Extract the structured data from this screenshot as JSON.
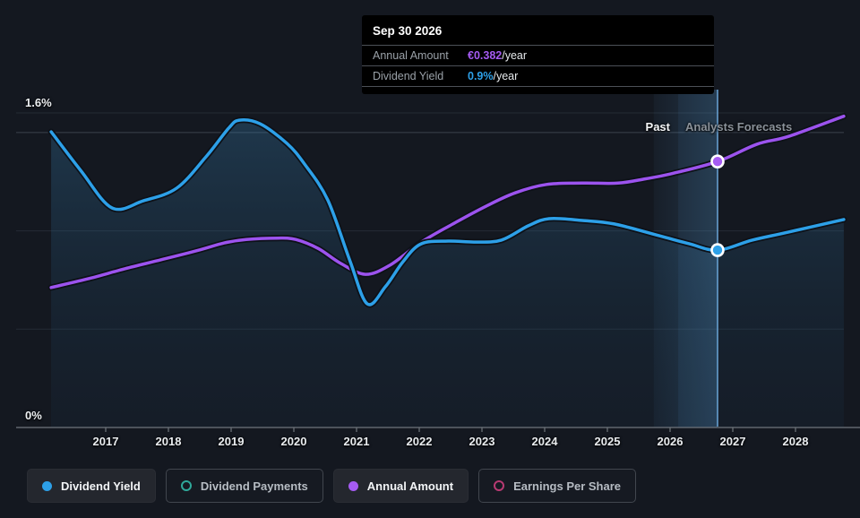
{
  "colors": {
    "background": "#141820",
    "blue": "#2da0e8",
    "purple": "#9c53ee",
    "teal": "#2fa89a",
    "pink": "#b73a72",
    "grid": "#242b34",
    "grid_bright": "#3a414b",
    "axis": "#6f757c",
    "hover_line": "#6aa6d8",
    "tooltip_bg": "#000000"
  },
  "tooltip": {
    "date": "Sep 30 2026",
    "rows": [
      {
        "label": "Annual Amount",
        "value": "€0.382",
        "suffix": "/year",
        "color": "#a55bf2"
      },
      {
        "label": "Dividend Yield",
        "value": "0.9%",
        "suffix": "/year",
        "color": "#2da0e8"
      }
    ]
  },
  "annotations": {
    "past_label": "Past",
    "forecast_label": "Analysts Forecasts"
  },
  "axes": {
    "y_top_label": "1.6%",
    "y_bottom_label": "0%",
    "years": [
      "2017",
      "2018",
      "2019",
      "2020",
      "2021",
      "2022",
      "2023",
      "2024",
      "2025",
      "2026",
      "2027",
      "2028"
    ]
  },
  "legend": [
    {
      "label": "Dividend Yield",
      "marker": "filled",
      "color": "#2da0e8",
      "active": true
    },
    {
      "label": "Dividend Payments",
      "marker": "open",
      "color": "#2fa89a",
      "active": false
    },
    {
      "label": "Annual Amount",
      "marker": "filled",
      "color": "#a55bf2",
      "active": true
    },
    {
      "label": "Earnings Per Share",
      "marker": "open",
      "color": "#b73a72",
      "active": false
    }
  ],
  "chart_data": {
    "type": "line",
    "title": "Dividend history and forecast",
    "x_range": [
      2016.13,
      2028.77
    ],
    "x_ticks": [
      2017,
      2018,
      2019,
      2020,
      2021,
      2022,
      2023,
      2024,
      2025,
      2026,
      2027,
      2028
    ],
    "y_axis_percent": {
      "range": [
        0,
        1.6
      ],
      "gridlines": [
        0,
        0.5,
        1.0,
        1.5,
        1.6
      ],
      "labeled": {
        "1.6": "1.6%",
        "0": "0%"
      }
    },
    "past_forecast_boundary_x": 2026.13,
    "highlight_band": {
      "x_start": 2025.74,
      "x_end": 2026.757
    },
    "hover_x": 2026.757,
    "series": [
      {
        "name": "Dividend Yield",
        "unit": "%",
        "color": "#2da0e8",
        "area": true,
        "points": [
          [
            2016.13,
            1.504
          ],
          [
            2016.6,
            1.308
          ],
          [
            2017.1,
            1.117
          ],
          [
            2017.6,
            1.153
          ],
          [
            2018.13,
            1.217
          ],
          [
            2018.6,
            1.377
          ],
          [
            2018.96,
            1.522
          ],
          [
            2019.13,
            1.563
          ],
          [
            2019.46,
            1.545
          ],
          [
            2019.89,
            1.445
          ],
          [
            2020.17,
            1.34
          ],
          [
            2020.54,
            1.158
          ],
          [
            2020.89,
            0.852
          ],
          [
            2021.17,
            0.629
          ],
          [
            2021.46,
            0.716
          ],
          [
            2021.74,
            0.843
          ],
          [
            2022.03,
            0.934
          ],
          [
            2022.46,
            0.948
          ],
          [
            2022.89,
            0.943
          ],
          [
            2023.31,
            0.953
          ],
          [
            2023.74,
            1.026
          ],
          [
            2024.07,
            1.062
          ],
          [
            2024.6,
            1.053
          ],
          [
            2025.11,
            1.035
          ],
          [
            2025.83,
            0.975
          ],
          [
            2026.31,
            0.934
          ],
          [
            2026.757,
            0.902
          ],
          [
            2027.31,
            0.953
          ],
          [
            2027.89,
            0.994
          ],
          [
            2028.77,
            1.058
          ]
        ]
      },
      {
        "name": "Annual Amount",
        "unit": "€/year",
        "color": "#9c53ee",
        "area": false,
        "points": [
          [
            2016.13,
            0.201
          ],
          [
            2016.74,
            0.214
          ],
          [
            2017.31,
            0.228
          ],
          [
            2017.89,
            0.241
          ],
          [
            2018.46,
            0.254
          ],
          [
            2018.89,
            0.265
          ],
          [
            2019.24,
            0.27
          ],
          [
            2019.74,
            0.272
          ],
          [
            2020.03,
            0.27
          ],
          [
            2020.39,
            0.257
          ],
          [
            2020.74,
            0.236
          ],
          [
            2021.14,
            0.22
          ],
          [
            2021.53,
            0.233
          ],
          [
            2022.03,
            0.266
          ],
          [
            2022.53,
            0.292
          ],
          [
            2023.07,
            0.318
          ],
          [
            2023.53,
            0.337
          ],
          [
            2024.03,
            0.349
          ],
          [
            2024.6,
            0.351
          ],
          [
            2025.17,
            0.351
          ],
          [
            2025.6,
            0.357
          ],
          [
            2026.0,
            0.364
          ],
          [
            2026.757,
            0.382
          ],
          [
            2027.39,
            0.407
          ],
          [
            2027.89,
            0.418
          ],
          [
            2028.77,
            0.447
          ]
        ]
      }
    ],
    "markers": [
      {
        "series": "Annual Amount",
        "x": 2026.757,
        "value": 0.382,
        "display": "€0.382/year"
      },
      {
        "series": "Dividend Yield",
        "x": 2026.757,
        "value": 0.902,
        "display": "0.9%/year"
      }
    ]
  }
}
